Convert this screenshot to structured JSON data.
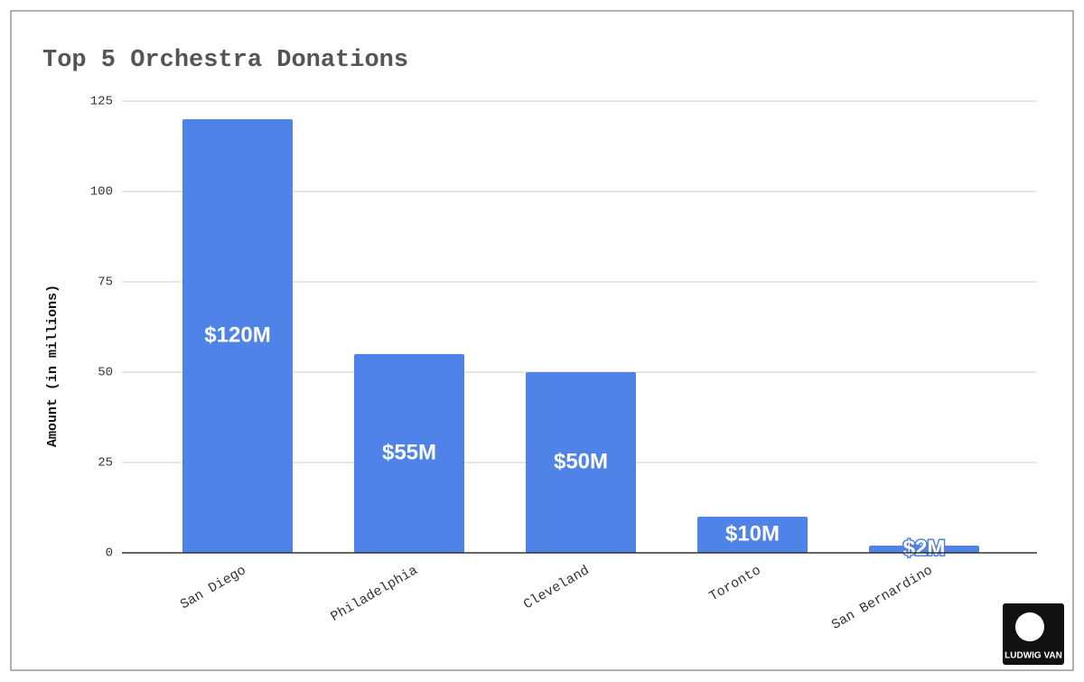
{
  "chart_data": {
    "type": "bar",
    "title": "Top 5 Orchestra Donations",
    "y_label": "Amount (in millions)",
    "categories": [
      "San Diego",
      "Philadelphia",
      "Cleveland",
      "Toronto",
      "San Bernardino"
    ],
    "values": [
      120,
      55,
      50,
      10,
      2
    ],
    "value_labels": [
      "$120M",
      "$55M",
      "$50M",
      "$10M",
      "$2M"
    ],
    "color": "#5083e8",
    "ylim": [
      0,
      125
    ],
    "yticks": [
      0,
      25,
      50,
      75,
      100,
      125
    ],
    "grid": true,
    "logo_text": "LUDWIG VAN"
  }
}
